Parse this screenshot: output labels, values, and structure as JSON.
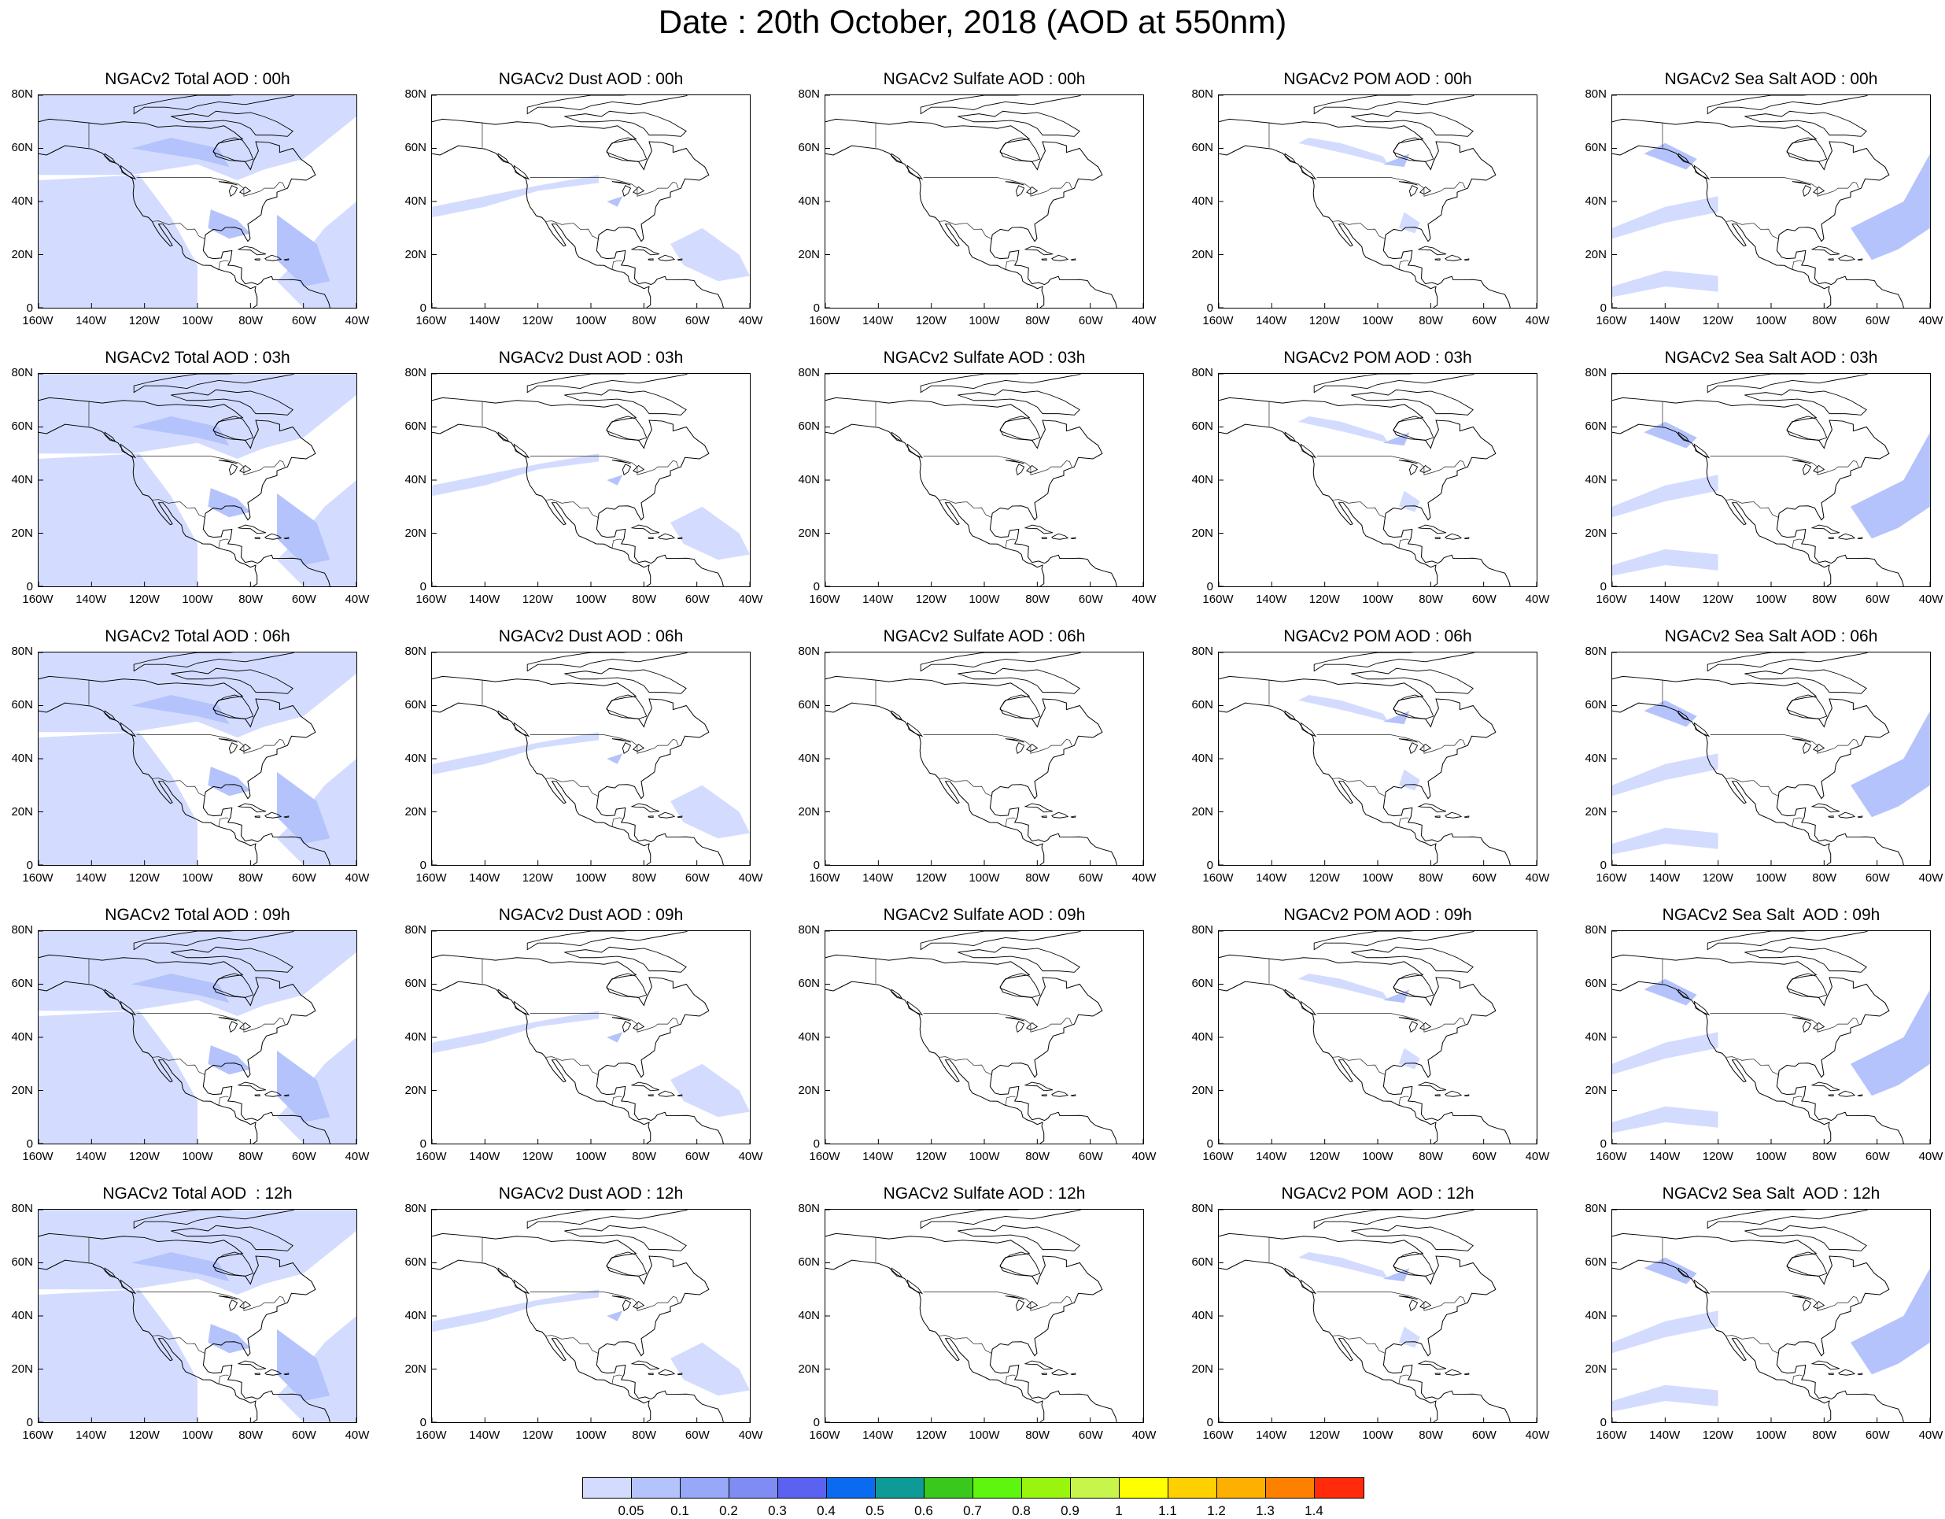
{
  "title": "Date : 20th October, 2018 (AOD at 550nm)",
  "axes": {
    "y_ticks": [
      "80N",
      "60N",
      "40N",
      "20N",
      "0"
    ],
    "x_ticks": [
      "160W",
      "140W",
      "120W",
      "100W",
      "80W",
      "60W",
      "40W"
    ],
    "lon_range": [
      -160,
      -40
    ],
    "lat_range": [
      0,
      80
    ]
  },
  "panel_titles": [
    [
      "NGACv2 Total AOD : 00h",
      "NGACv2 Dust AOD : 00h",
      "NGACv2 Sulfate AOD : 00h",
      "NGACv2 POM AOD : 00h",
      "NGACv2 Sea Salt AOD : 00h"
    ],
    [
      "NGACv2 Total AOD : 03h",
      "NGACv2 Dust AOD : 03h",
      "NGACv2 Sulfate AOD : 03h",
      "NGACv2 POM AOD : 03h",
      "NGACv2 Sea Salt AOD : 03h"
    ],
    [
      "NGACv2 Total AOD : 06h",
      "NGACv2 Dust AOD : 06h",
      "NGACv2 Sulfate AOD : 06h",
      "NGACv2 POM AOD : 06h",
      "NGACv2 Sea Salt AOD : 06h"
    ],
    [
      "NGACv2 Total AOD : 09h",
      "NGACv2 Dust AOD : 09h",
      "NGACv2 Sulfate AOD : 09h",
      "NGACv2 POM AOD : 09h",
      "NGACv2 Sea Salt  AOD : 09h"
    ],
    [
      "NGACv2 Total AOD  : 12h",
      "NGACv2 Dust AOD : 12h",
      "NGACv2 Sulfate AOD : 12h",
      "NGACv2 POM  AOD : 12h",
      "NGACv2 Sea Salt  AOD : 12h"
    ]
  ],
  "colorbar": {
    "labels": [
      "0.05",
      "0.1",
      "0.2",
      "0.3",
      "0.4",
      "0.5",
      "0.6",
      "0.7",
      "0.8",
      "0.9",
      "1",
      "1.1",
      "1.2",
      "1.3",
      "1.4"
    ],
    "colors": [
      "#ffffff",
      "#d3dcff",
      "#b4c3fb",
      "#96a8f7",
      "#7e8cf4",
      "#5a62ef",
      "#0a6bf0",
      "#0e9a96",
      "#39c81b",
      "#5ef50e",
      "#99f50e",
      "#c8f54b",
      "#ffff00",
      "#fed000",
      "#feb000",
      "#fe8000",
      "#ff2b0a"
    ]
  }
}
